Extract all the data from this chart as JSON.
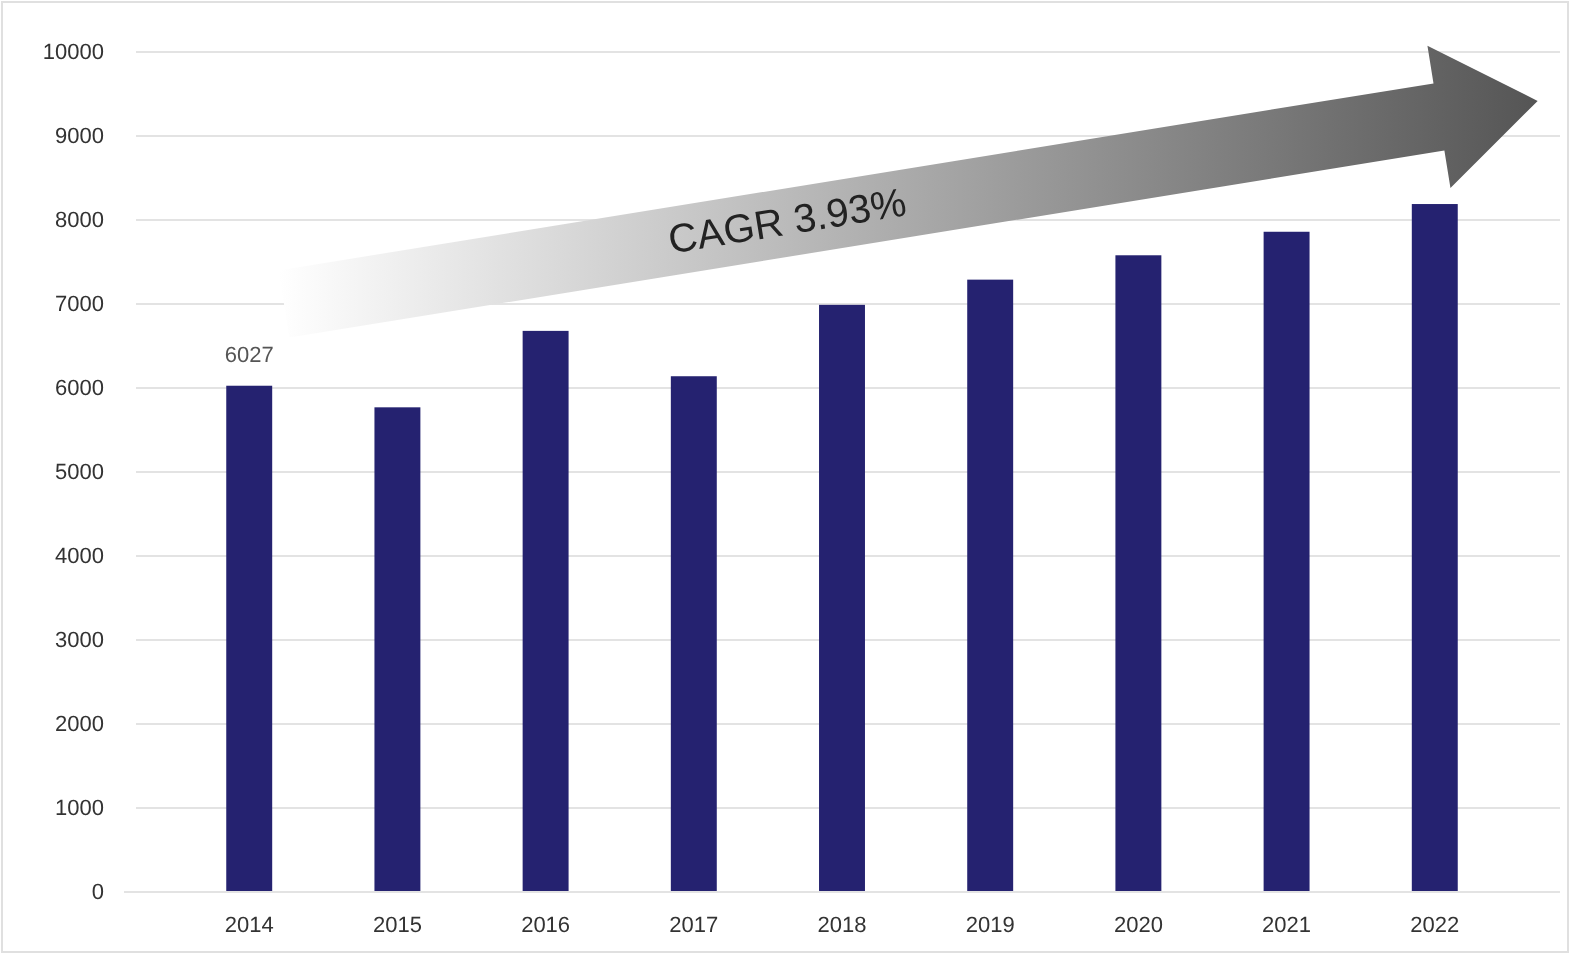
{
  "chart_data": {
    "type": "bar",
    "categories": [
      "2014",
      "2015",
      "2016",
      "2017",
      "2018",
      "2019",
      "2020",
      "2021",
      "2022"
    ],
    "values": [
      6027,
      5770,
      6680,
      6140,
      6990,
      7290,
      7580,
      7860,
      8190
    ],
    "value_labels": [
      "6027",
      null,
      null,
      null,
      null,
      null,
      null,
      null,
      null
    ],
    "color": "#252270",
    "ylim": [
      0,
      10000
    ],
    "yticks": [
      0,
      1000,
      2000,
      3000,
      4000,
      5000,
      6000,
      7000,
      8000,
      9000,
      10000
    ],
    "grid": "y",
    "annotations": [
      "CAGR 3.93%"
    ]
  }
}
